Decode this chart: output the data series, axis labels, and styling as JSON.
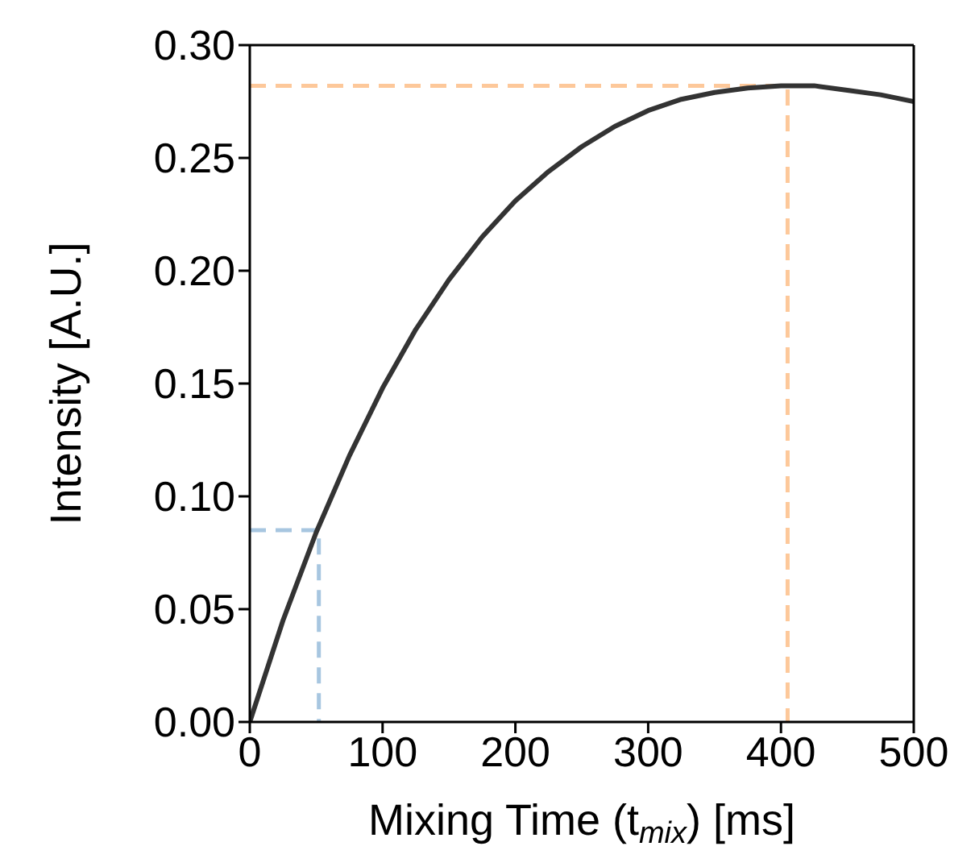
{
  "chart_data": {
    "type": "line",
    "xlabel": "Mixing Time (t$_{mix}$) [ms]",
    "ylabel": "Intensity [A.U.]",
    "xlim": [
      0,
      500
    ],
    "xticks": [
      0,
      100,
      200,
      300,
      400,
      500
    ],
    "ylim": [
      0,
      0.3
    ],
    "yticks": [
      {
        "value": 0,
        "label": "0.00"
      },
      {
        "value": 0.05,
        "label": "0.05"
      },
      {
        "value": 0.1,
        "label": "0.10"
      },
      {
        "value": 0.15,
        "label": "0.15"
      },
      {
        "value": 0.2,
        "label": "0.20"
      },
      {
        "value": 0.25,
        "label": "0.25"
      },
      {
        "value": 0.3,
        "label": "0.30"
      }
    ],
    "series": [
      {
        "color": "#a7c6e0",
        "line_style": "dashed",
        "x": [
          0,
          52,
          52
        ],
        "values": [
          0.085,
          0.085,
          0
        ]
      },
      {
        "color": "#fdc89a",
        "line_style": "dashed",
        "x": [
          0,
          405,
          405
        ],
        "values": [
          0.282,
          0.282,
          0
        ]
      },
      {
        "color": "#333333",
        "line_style": "solid",
        "x": [
          0,
          25,
          50,
          75,
          100,
          125,
          150,
          175,
          200,
          225,
          250,
          275,
          300,
          325,
          350,
          375,
          400,
          425,
          450,
          475,
          500
        ],
        "values": [
          0,
          0.045,
          0.084,
          0.118,
          0.148,
          0.174,
          0.196,
          0.215,
          0.231,
          0.244,
          0.255,
          0.264,
          0.271,
          0.276,
          0.279,
          0.281,
          0.282,
          0.282,
          0.28,
          0.278,
          0.275
        ]
      }
    ]
  }
}
